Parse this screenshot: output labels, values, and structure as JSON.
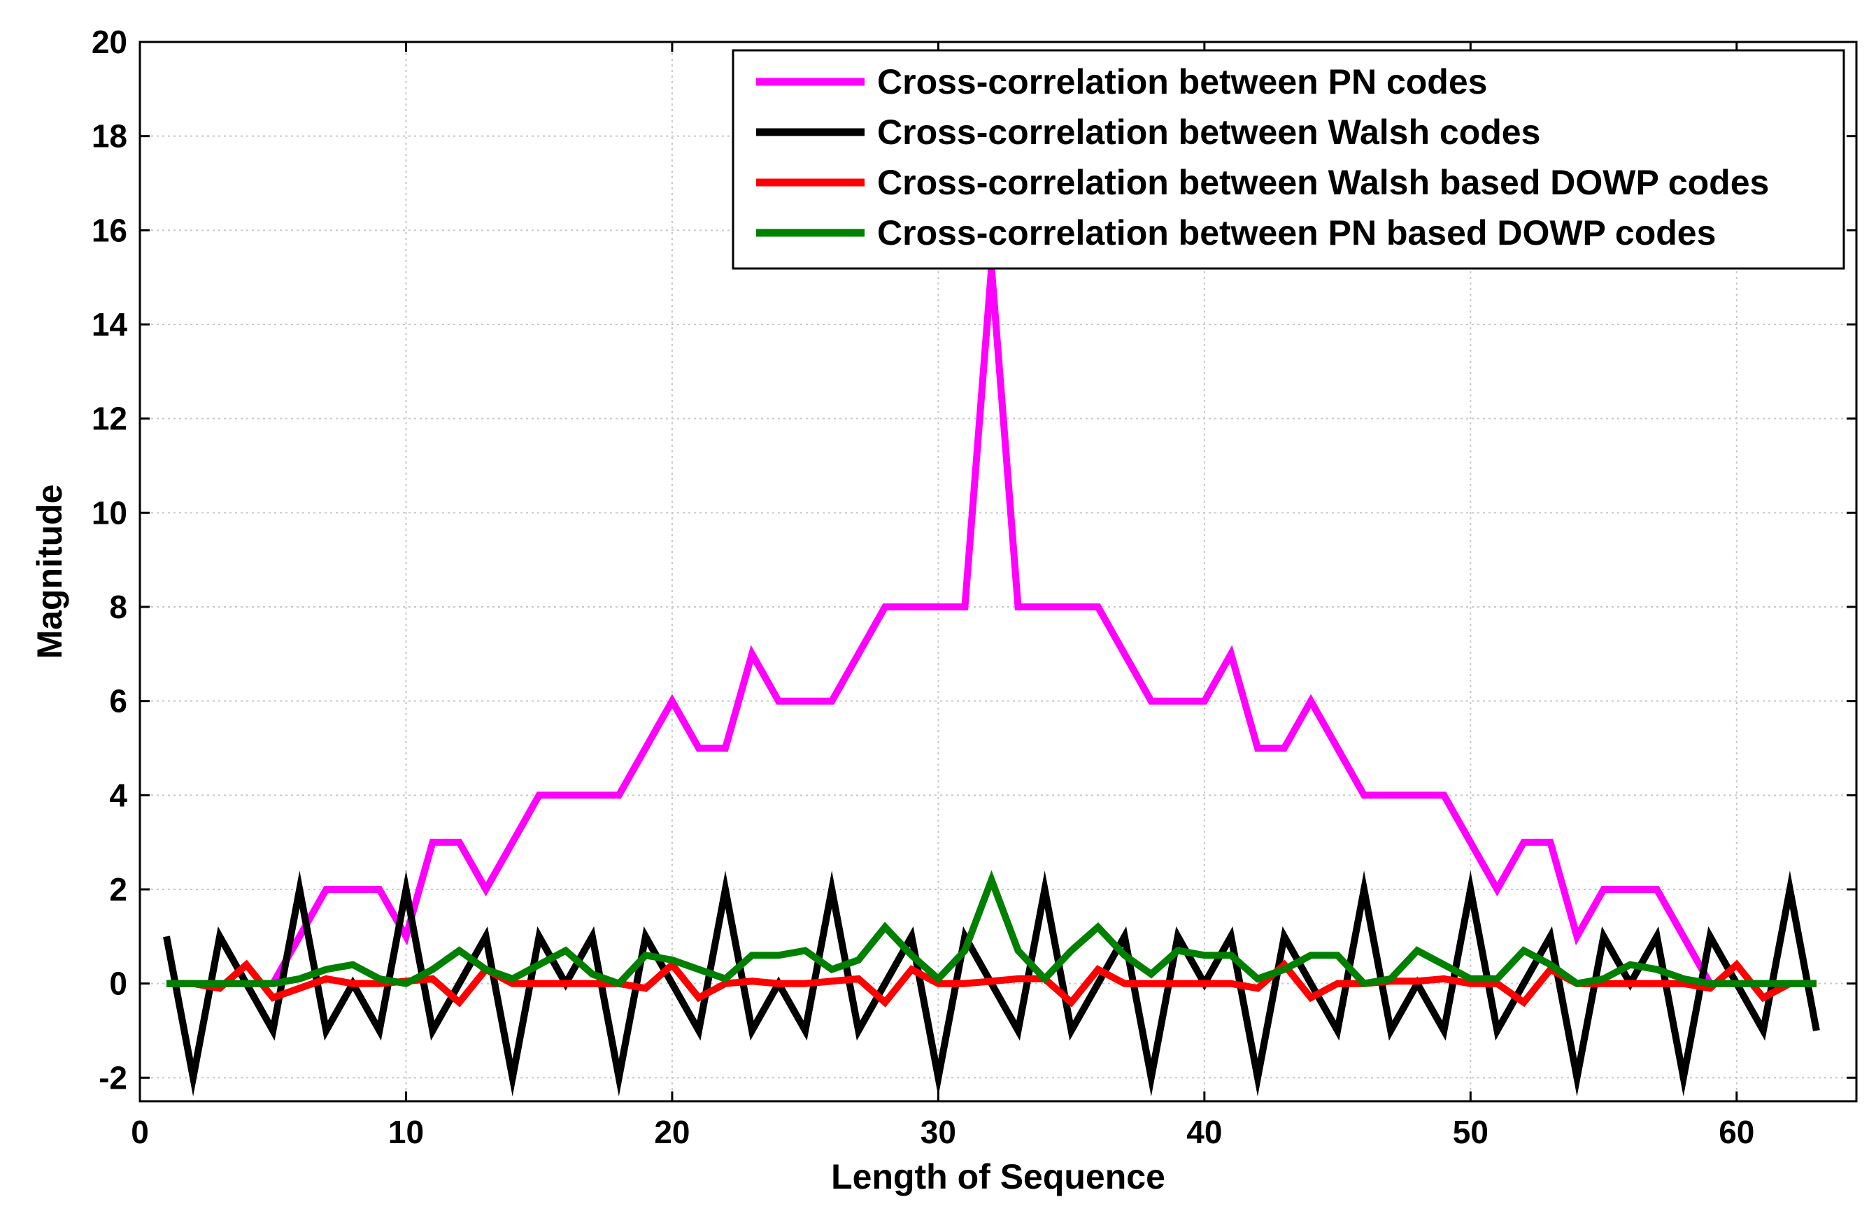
{
  "chart_data": {
    "type": "line",
    "title": "",
    "xlabel": "Length of Sequence",
    "ylabel": "Magnitude",
    "xlim": [
      0,
      64.5
    ],
    "ylim": [
      -2.5,
      20
    ],
    "xticks": [
      0,
      10,
      20,
      30,
      40,
      50,
      60
    ],
    "yticks": [
      -2,
      0,
      2,
      4,
      6,
      8,
      10,
      12,
      14,
      16,
      18,
      20
    ],
    "xtick_labels": [
      "0",
      "10",
      "20",
      "30",
      "40",
      "50",
      "60"
    ],
    "ytick_labels": [
      "-2",
      "0",
      "2",
      "4",
      "6",
      "8",
      "10",
      "12",
      "14",
      "16",
      "18",
      "20"
    ],
    "grid": true,
    "legend_position": "top-right",
    "x": [
      1,
      2,
      3,
      4,
      5,
      6,
      7,
      8,
      9,
      10,
      11,
      12,
      13,
      14,
      15,
      16,
      17,
      18,
      19,
      20,
      21,
      22,
      23,
      24,
      25,
      26,
      27,
      28,
      29,
      30,
      31,
      32,
      33,
      34,
      35,
      36,
      37,
      38,
      39,
      40,
      41,
      42,
      43,
      44,
      45,
      46,
      47,
      48,
      49,
      50,
      51,
      52,
      53,
      54,
      55,
      56,
      57,
      58,
      59,
      60,
      61,
      62,
      63
    ],
    "series": [
      {
        "name": "Cross-correlation between PN codes",
        "color": "#ff00ff",
        "values": [
          0,
          0,
          0,
          0,
          0,
          1,
          2,
          2,
          2,
          1,
          3,
          3,
          2,
          3,
          4,
          4,
          4,
          4,
          5,
          6,
          5,
          5,
          7,
          6,
          6,
          6,
          7,
          8,
          8,
          8,
          8,
          15.2,
          8,
          8,
          8,
          8,
          7,
          6,
          6,
          6,
          7,
          5,
          5,
          6,
          5,
          4,
          4,
          4,
          4,
          3,
          2,
          3,
          3,
          1,
          2,
          2,
          2,
          1,
          0,
          0,
          0,
          0,
          0
        ]
      },
      {
        "name": "Cross-correlation between Walsh codes",
        "color": "#000000",
        "values": [
          1,
          -2,
          1,
          0,
          -1,
          2,
          -1,
          0,
          -1,
          2,
          -1,
          0,
          1,
          -2,
          1,
          0,
          1,
          -2,
          1,
          0,
          -1,
          2,
          -1,
          0,
          -1,
          2,
          -1,
          0,
          1,
          -2,
          1,
          0,
          -1,
          2,
          -1,
          0,
          1,
          -2,
          1,
          0,
          1,
          -2,
          1,
          0,
          -1,
          2,
          -1,
          0,
          -1,
          2,
          -1,
          0,
          1,
          -2,
          1,
          0,
          1,
          -2,
          1,
          0,
          -1,
          2,
          -1
        ]
      },
      {
        "name": "Cross-correlation between Walsh based DOWP codes",
        "color": "#ff0000",
        "values": [
          0,
          0,
          -0.1,
          0.4,
          -0.3,
          -0.1,
          0.1,
          0,
          0,
          0.05,
          0.1,
          -0.4,
          0.3,
          0,
          0,
          0,
          0,
          0,
          -0.1,
          0.4,
          -0.3,
          0,
          0.05,
          0,
          0,
          0.05,
          0.1,
          -0.4,
          0.3,
          0,
          0,
          0.05,
          0.1,
          0.1,
          -0.4,
          0.3,
          0,
          0,
          0,
          0,
          0,
          -0.1,
          0.4,
          -0.3,
          0,
          0,
          0.05,
          0.05,
          0.1,
          0,
          0,
          -0.4,
          0.3,
          0,
          0,
          0,
          0,
          0,
          -0.1,
          0.4,
          -0.3,
          0,
          0
        ]
      },
      {
        "name": "Cross-correlation between PN based DOWP codes",
        "color": "#008000",
        "values": [
          0,
          0,
          0,
          0,
          0,
          0.1,
          0.3,
          0.4,
          0.1,
          0,
          0.3,
          0.7,
          0.3,
          0.1,
          0.4,
          0.7,
          0.2,
          0,
          0.6,
          0.5,
          0.3,
          0.1,
          0.6,
          0.6,
          0.7,
          0.3,
          0.5,
          1.2,
          0.6,
          0.1,
          0.7,
          2.2,
          0.7,
          0.1,
          0.7,
          1.2,
          0.6,
          0.2,
          0.7,
          0.6,
          0.6,
          0.1,
          0.3,
          0.6,
          0.6,
          0,
          0.1,
          0.7,
          0.4,
          0.1,
          0.1,
          0.7,
          0.4,
          0,
          0.1,
          0.4,
          0.3,
          0.1,
          0,
          0,
          0,
          0,
          0
        ]
      }
    ]
  }
}
